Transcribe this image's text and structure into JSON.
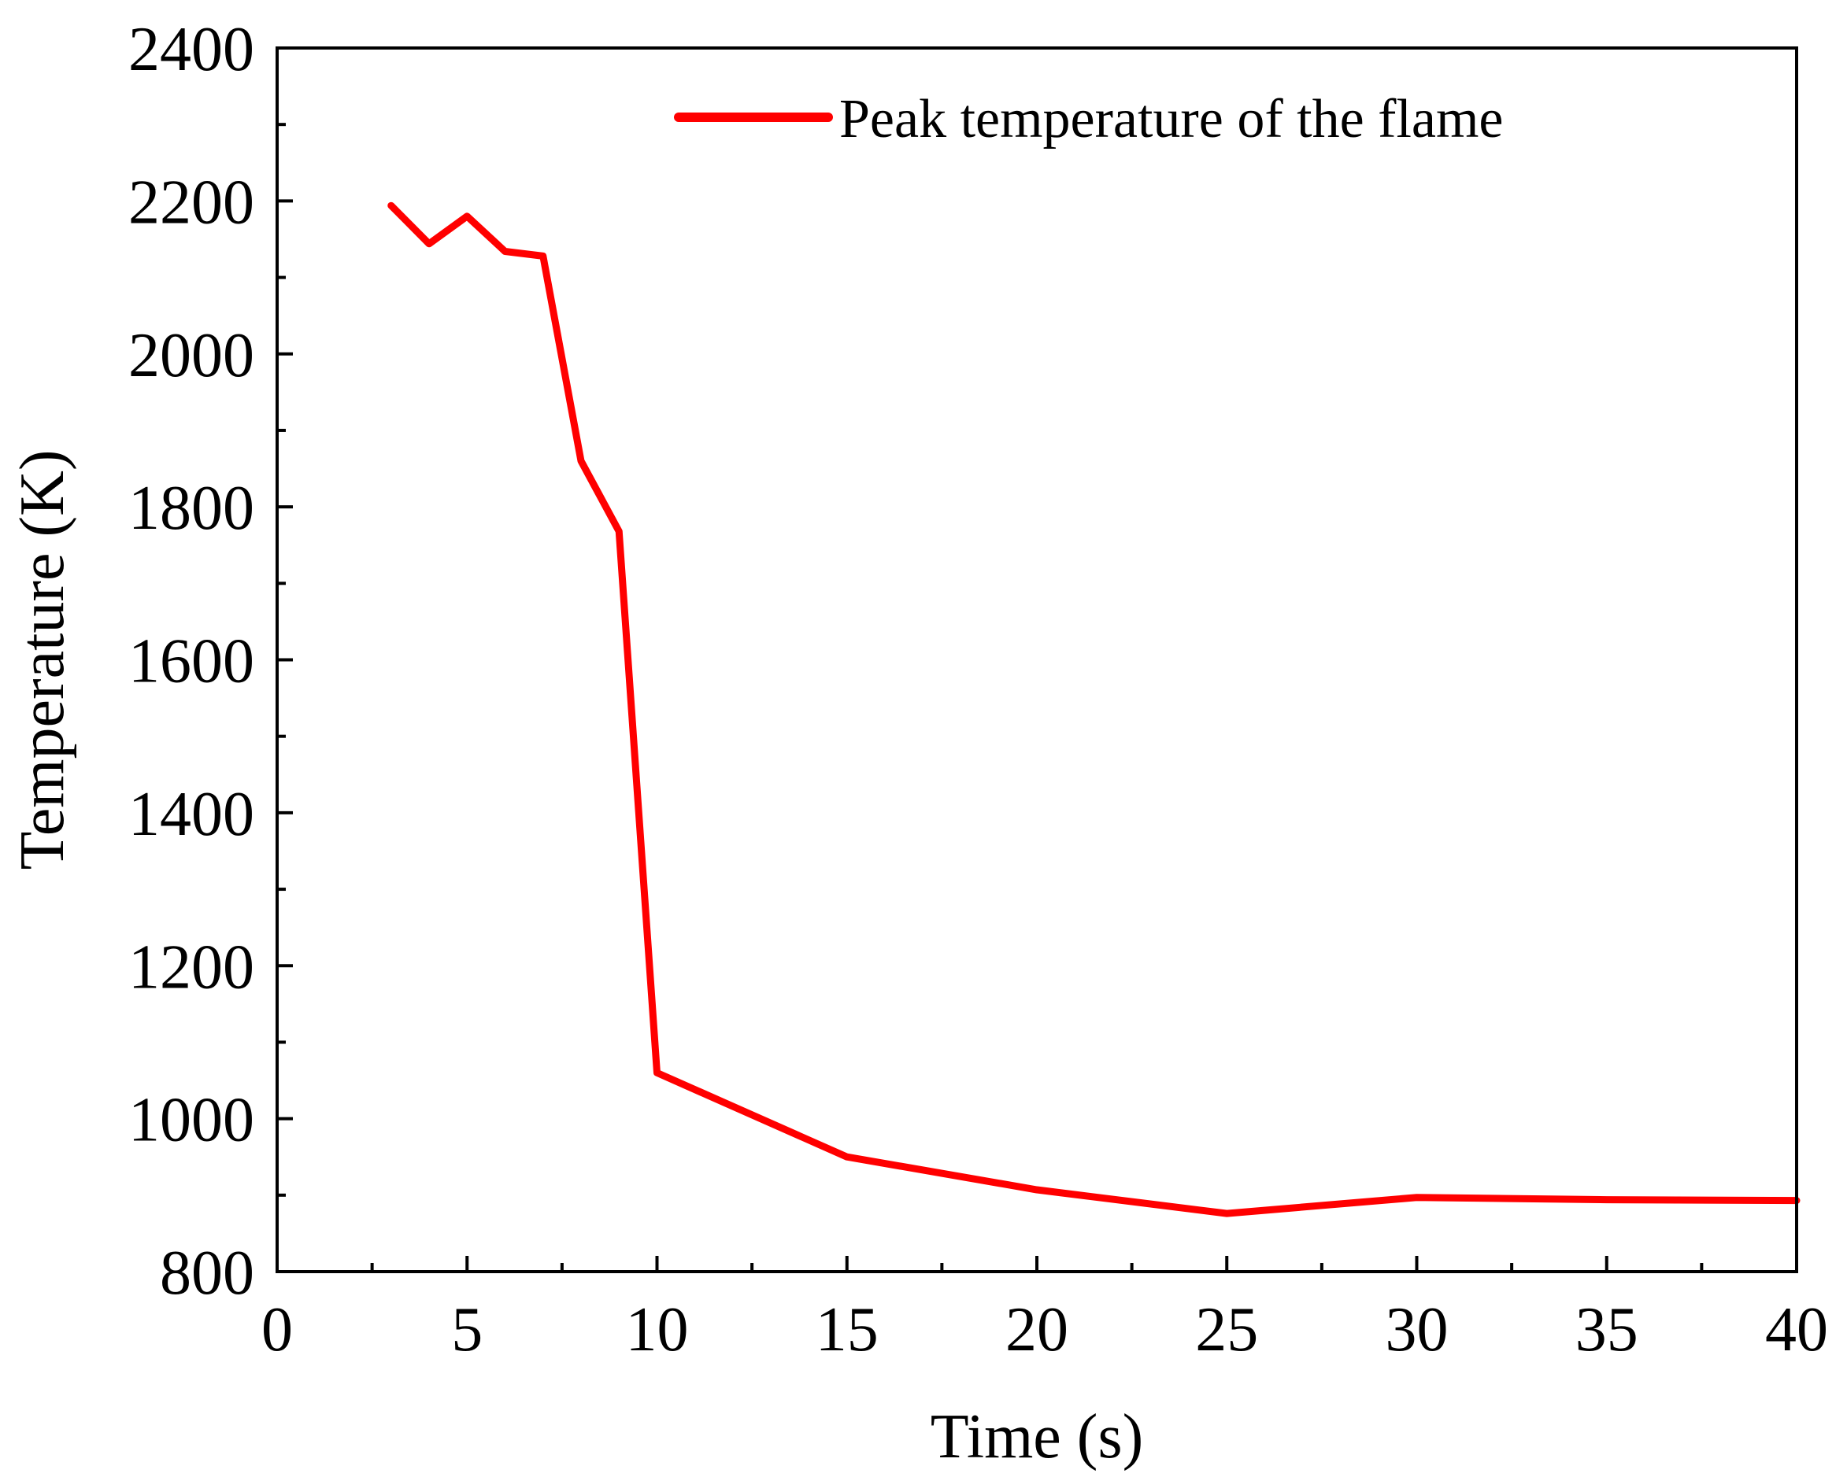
{
  "chart_data": {
    "type": "line",
    "title": "",
    "xlabel": "Time (s)",
    "ylabel": "Temperature (K)",
    "xlim": [
      0,
      40
    ],
    "ylim": [
      800,
      2400
    ],
    "xticks": [
      0,
      5,
      10,
      15,
      20,
      25,
      30,
      35,
      40
    ],
    "yticks": [
      800,
      1000,
      1200,
      1400,
      1600,
      1800,
      2000,
      2200,
      2400
    ],
    "grid": false,
    "legend_position": "top-right",
    "series": [
      {
        "name": "Peak temperature of the flame",
        "color": "#ff0000",
        "x": [
          3,
          4,
          5,
          6,
          7,
          8,
          9,
          10,
          15,
          20,
          25,
          30,
          35,
          40
        ],
        "y": [
          2194,
          2144,
          2180,
          2134,
          2128,
          1860,
          1768,
          1060,
          950,
          907,
          876,
          897,
          894,
          893
        ]
      }
    ]
  }
}
